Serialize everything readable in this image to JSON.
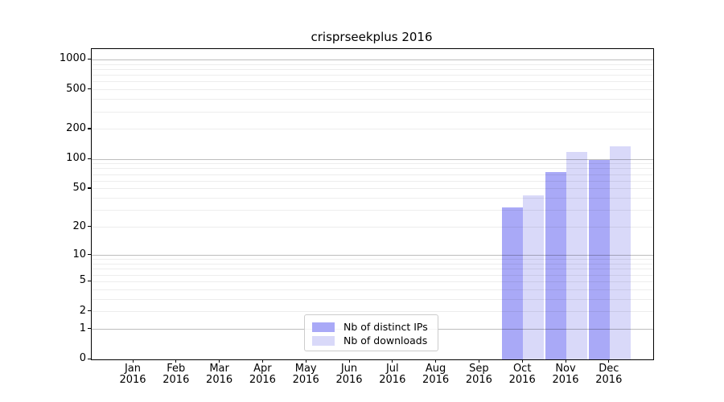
{
  "figure": {
    "title": "crisprseekplus 2016"
  },
  "chart_data": {
    "type": "bar",
    "title": "crisprseekplus 2016",
    "x_tick_months": [
      "Jan",
      "Feb",
      "Mar",
      "Apr",
      "May",
      "Jun",
      "Jul",
      "Aug",
      "Sep",
      "Oct",
      "Nov",
      "Dec"
    ],
    "x_tick_year": "2016",
    "y_tick_labels": [
      0,
      1,
      2,
      5,
      10,
      20,
      50,
      100,
      200,
      500,
      1000
    ],
    "y_scale": "log10(1+y)",
    "ylim": [
      0,
      1280
    ],
    "grid": {
      "major_values": [
        1,
        10,
        100,
        1000
      ],
      "minor_values": [
        2,
        3,
        4,
        5,
        6,
        7,
        8,
        9,
        20,
        30,
        40,
        50,
        60,
        70,
        80,
        90,
        200,
        300,
        400,
        500,
        600,
        700,
        800,
        900
      ]
    },
    "legend_position": "inside bottom-center-left",
    "series": [
      {
        "name": "Nb of distinct IPs",
        "color": "#a9a9f7",
        "values": [
          0,
          0,
          0,
          0,
          0,
          0,
          0,
          0,
          0,
          32,
          74,
          98
        ]
      },
      {
        "name": "Nb of downloads",
        "color": "#d9d9f9",
        "values": [
          0,
          0,
          0,
          0,
          0,
          0,
          0,
          0,
          0,
          43,
          118,
          135
        ]
      }
    ]
  }
}
